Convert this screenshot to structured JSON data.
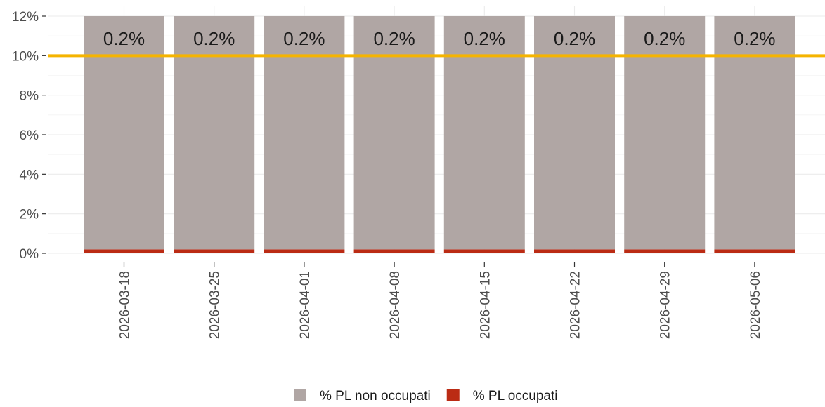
{
  "chart_data": {
    "type": "bar",
    "stacked": true,
    "categories": [
      "2026-03-18",
      "2026-03-25",
      "2026-04-01",
      "2026-04-08",
      "2026-04-15",
      "2026-04-22",
      "2026-04-29",
      "2026-05-06"
    ],
    "series": [
      {
        "name": "% PL occupati",
        "color": "#bb2b14",
        "values": [
          0.2,
          0.2,
          0.2,
          0.2,
          0.2,
          0.2,
          0.2,
          0.2
        ]
      },
      {
        "name": "% PL non occupati",
        "color": "#b0a6a4",
        "values": [
          11.8,
          11.8,
          11.8,
          11.8,
          11.8,
          11.8,
          11.8,
          11.8
        ]
      }
    ],
    "data_labels": [
      "0.2%",
      "0.2%",
      "0.2%",
      "0.2%",
      "0.2%",
      "0.2%",
      "0.2%",
      "0.2%"
    ],
    "ylim": [
      0,
      12
    ],
    "yticks": [
      0,
      2,
      4,
      6,
      8,
      10,
      12
    ],
    "ytick_labels": [
      "0%",
      "2%",
      "4%",
      "6%",
      "8%",
      "10%",
      "12%"
    ],
    "reference_line": {
      "y": 10,
      "color": "#f5b400"
    },
    "xlabel": "",
    "ylabel": "",
    "grid": true,
    "legend_position": "bottom",
    "legend": [
      "% PL non occupati",
      "% PL occupati"
    ]
  }
}
